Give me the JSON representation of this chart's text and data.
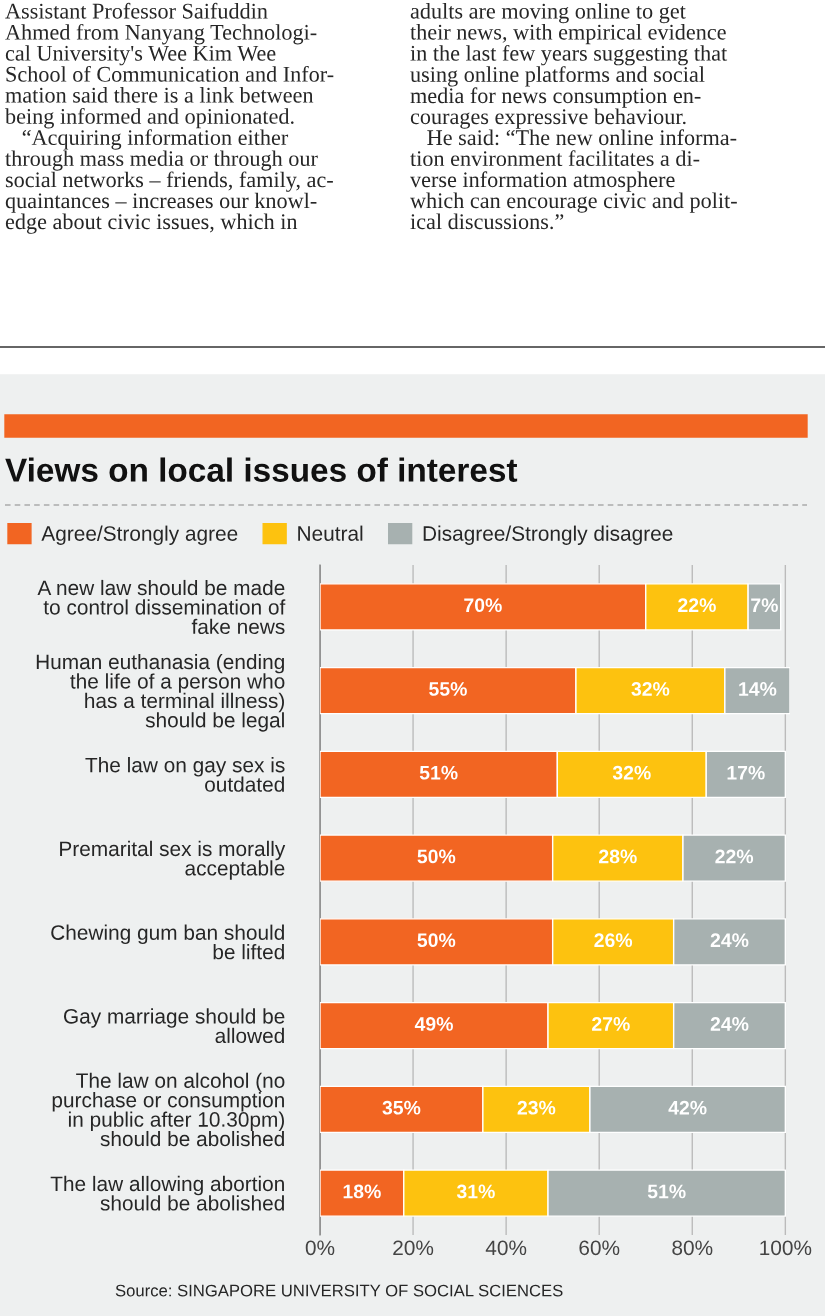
{
  "chart_data": {
    "type": "bar",
    "orientation": "horizontal",
    "stacked": true,
    "title": "Views on local issues of interest",
    "categories": [
      "A new law should be made\nto control dissemination of\nfake news",
      "Human euthanasia (ending\nthe life of a person who\nhas a terminal illness)\nshould be legal",
      "The law on gay sex is\noutdated",
      "Premarital sex is morally\nacceptable",
      "Chewing gum ban should\nbe lifted",
      "Gay marriage should be\nallowed",
      "The law on alcohol (no\npurchase or consumption\nin public after 10.30pm)\nshould be abolished",
      "The law allowing abortion\nshould be abolished"
    ],
    "series": [
      {
        "name": "Agree/Strongly agree",
        "color": "#f26522",
        "values": [
          70,
          55,
          51,
          50,
          50,
          49,
          35,
          18
        ],
        "value_labels": [
          "70%",
          "55%",
          "51%",
          "50%",
          "50%",
          "49%",
          "35%",
          "18%"
        ]
      },
      {
        "name": "Neutral",
        "color": "#fdc20f",
        "values": [
          22,
          32,
          32,
          28,
          26,
          27,
          23,
          31
        ],
        "value_labels": [
          "22%",
          "32%",
          "32%",
          "28%",
          "26%",
          "27%",
          "23%",
          "31%"
        ]
      },
      {
        "name": "Disagree/Strongly disagree",
        "color": "#a7b1b0",
        "values": [
          7,
          14,
          17,
          22,
          24,
          24,
          42,
          51
        ],
        "value_labels": [
          "7%",
          "14%",
          "17%",
          "22%",
          "24%",
          "24%",
          "42%",
          "51%"
        ]
      }
    ],
    "xlim": [
      0,
      101
    ],
    "xticks": [
      {
        "value": 0,
        "label": "0%"
      },
      {
        "value": 20,
        "label": "20%"
      },
      {
        "value": 40,
        "label": "40%"
      },
      {
        "value": 60,
        "label": "60%"
      },
      {
        "value": 80,
        "label": "80%"
      },
      {
        "value": 100,
        "label": "100%"
      }
    ],
    "grid": "x",
    "legend": "top",
    "annotations": [
      "Assistant Professor Saifuddin\nAhmed from Nanyang Technologi-\ncal University's Wee Kim Wee\nSchool of Communication and Infor-\nmation said there is a link between\nbeing informed and opinionated.\n   “Acquiring information either\nthrough mass media or through our\nsocial networks – friends, family, ac-\nquaintances – increases our knowl-\nedge about civic issues, which in",
      "adults are moving online to get\ntheir news, with empirical evidence\nin the last few years suggesting that\nusing online platforms and social\nmedia for news consumption en-\ncourages expressive behaviour.\n   He said: “The new online informa-\ntion environment facilitates a di-\nverse information atmosphere\nwhich can encourage civic and polit-\nical discussions.”",
      "Source: SINGAPORE UNIVERSITY OF SOCIAL SCIENCES"
    ]
  }
}
